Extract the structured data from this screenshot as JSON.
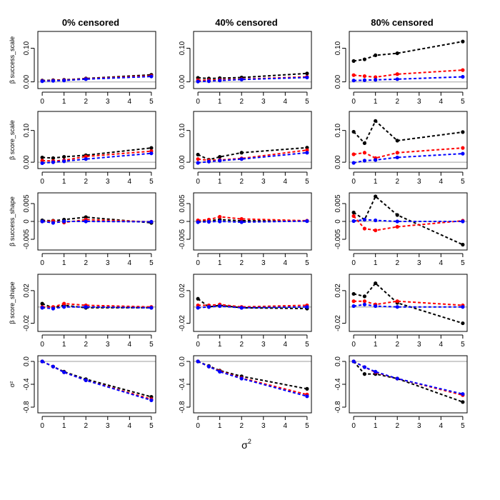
{
  "figure": {
    "xlabel_base": "σ",
    "xlabel_sup": "2"
  },
  "column_titles": [
    "0% censored",
    "40% censored",
    "80% censored"
  ],
  "colors": {
    "black": "#000000",
    "red": "#ff0000",
    "blue": "#0000ff",
    "reference": "#bebebe"
  },
  "rows": [
    {
      "label": "β success_scale",
      "ylim": [
        -0.02,
        0.15
      ],
      "yticks": [
        0.0,
        0.1
      ],
      "ytick_labels": [
        "0.00",
        "0.10"
      ]
    },
    {
      "label": "β score_scale",
      "ylim": [
        -0.02,
        0.16
      ],
      "yticks": [
        0.0,
        0.1
      ],
      "ytick_labels": [
        "0.00",
        "0.10"
      ]
    },
    {
      "label": "β success_shape",
      "ylim": [
        -0.008,
        0.008
      ],
      "yticks": [
        -0.005,
        0,
        0.005
      ],
      "ytick_labels": [
        "-0.005",
        "0",
        "0.005"
      ]
    },
    {
      "label": "β score_shape",
      "ylim": [
        -0.03,
        0.04
      ],
      "yticks": [
        -0.02,
        0.02
      ],
      "ytick_labels": [
        "-0.02",
        "0.02"
      ]
    },
    {
      "label": "σ²",
      "ylim": [
        -0.9,
        0.1
      ],
      "yticks": [
        0.0,
        -0.4,
        -0.8
      ],
      "ytick_labels": [
        "0.0",
        "-0.4",
        "-0.8"
      ]
    }
  ],
  "chart_data": [
    {
      "type": "line",
      "row": 0,
      "col": 0,
      "title": "0% censored",
      "ylabel": "β success_scale",
      "x": [
        0,
        0.5,
        1,
        2,
        5
      ],
      "xlim": [
        -0.2,
        5.2
      ],
      "ylim": [
        -0.02,
        0.15
      ],
      "reference_line": 0,
      "series": [
        {
          "name": "black",
          "values": [
            0.004,
            0.005,
            0.006,
            0.01,
            0.021
          ]
        },
        {
          "name": "red",
          "values": [
            0.003,
            0.004,
            0.005,
            0.009,
            0.018
          ]
        },
        {
          "name": "blue",
          "values": [
            0.002,
            0.003,
            0.004,
            0.008,
            0.016
          ]
        }
      ]
    },
    {
      "type": "line",
      "row": 0,
      "col": 1,
      "title": "40% censored",
      "ylabel": "β success_scale",
      "x": [
        0,
        0.5,
        1,
        2,
        5
      ],
      "xlim": [
        -0.2,
        5.2
      ],
      "ylim": [
        -0.02,
        0.15
      ],
      "reference_line": 0,
      "series": [
        {
          "name": "black",
          "values": [
            0.012,
            0.01,
            0.011,
            0.013,
            0.025
          ]
        },
        {
          "name": "red",
          "values": [
            0.005,
            0.005,
            0.006,
            0.008,
            0.015
          ]
        },
        {
          "name": "blue",
          "values": [
            0.001,
            0.002,
            0.004,
            0.007,
            0.013
          ]
        }
      ]
    },
    {
      "type": "line",
      "row": 0,
      "col": 2,
      "title": "80% censored",
      "ylabel": "β success_scale",
      "x": [
        0,
        0.5,
        1,
        2,
        5
      ],
      "xlim": [
        -0.2,
        5.2
      ],
      "ylim": [
        -0.02,
        0.15
      ],
      "reference_line": 0,
      "series": [
        {
          "name": "black",
          "values": [
            0.062,
            0.067,
            0.079,
            0.085,
            0.12
          ]
        },
        {
          "name": "red",
          "values": [
            0.02,
            0.017,
            0.014,
            0.023,
            0.035
          ]
        },
        {
          "name": "blue",
          "values": [
            0.004,
            0.005,
            0.006,
            0.008,
            0.015
          ]
        }
      ]
    },
    {
      "type": "line",
      "row": 1,
      "col": 0,
      "title": "0% censored",
      "ylabel": "β score_scale",
      "x": [
        0,
        0.5,
        1,
        2,
        5
      ],
      "xlim": [
        -0.2,
        5.2
      ],
      "ylim": [
        -0.02,
        0.16
      ],
      "reference_line": 0,
      "series": [
        {
          "name": "black",
          "values": [
            0.015,
            0.013,
            0.017,
            0.022,
            0.045
          ]
        },
        {
          "name": "red",
          "values": [
            0.005,
            0.004,
            0.006,
            0.018,
            0.035
          ]
        },
        {
          "name": "blue",
          "values": [
            -0.003,
            0.0,
            0.003,
            0.01,
            0.028
          ]
        }
      ]
    },
    {
      "type": "line",
      "row": 1,
      "col": 1,
      "title": "40% censored",
      "ylabel": "β score_scale",
      "x": [
        0,
        0.5,
        1,
        2,
        5
      ],
      "xlim": [
        -0.2,
        5.2
      ],
      "ylim": [
        -0.02,
        0.16
      ],
      "reference_line": 0,
      "series": [
        {
          "name": "black",
          "values": [
            0.024,
            0.008,
            0.017,
            0.03,
            0.046
          ]
        },
        {
          "name": "red",
          "values": [
            0.01,
            0.006,
            0.007,
            0.012,
            0.038
          ]
        },
        {
          "name": "blue",
          "values": [
            -0.002,
            0.002,
            0.005,
            0.01,
            0.03
          ]
        }
      ]
    },
    {
      "type": "line",
      "row": 1,
      "col": 2,
      "title": "80% censored",
      "ylabel": "β score_scale",
      "x": [
        0,
        0.5,
        1,
        2,
        5
      ],
      "xlim": [
        -0.2,
        5.2
      ],
      "ylim": [
        -0.02,
        0.16
      ],
      "reference_line": 0,
      "series": [
        {
          "name": "black",
          "values": [
            0.096,
            0.06,
            0.13,
            0.068,
            0.095
          ]
        },
        {
          "name": "red",
          "values": [
            0.025,
            0.03,
            0.013,
            0.03,
            0.045
          ]
        },
        {
          "name": "blue",
          "values": [
            -0.002,
            0.005,
            0.007,
            0.015,
            0.027
          ]
        }
      ]
    },
    {
      "type": "line",
      "row": 2,
      "col": 0,
      "title": "0% censored",
      "ylabel": "β success_shape",
      "x": [
        0,
        0.5,
        1,
        2,
        5
      ],
      "xlim": [
        -0.2,
        5.2
      ],
      "ylim": [
        -0.008,
        0.008
      ],
      "reference_line": 0,
      "series": [
        {
          "name": "black",
          "values": [
            0.0003,
            0.0002,
            0.0005,
            0.0012,
            -0.0004
          ]
        },
        {
          "name": "red",
          "values": [
            0.0,
            0.0001,
            -0.0003,
            0.0005,
            -0.0001
          ]
        },
        {
          "name": "blue",
          "values": [
            0.0,
            -0.0004,
            0.0,
            0.0,
            -0.0001
          ]
        }
      ]
    },
    {
      "type": "line",
      "row": 2,
      "col": 1,
      "title": "40% censored",
      "ylabel": "β success_shape",
      "x": [
        0,
        0.5,
        1,
        2,
        5
      ],
      "xlim": [
        -0.2,
        5.2
      ],
      "ylim": [
        -0.008,
        0.008
      ],
      "reference_line": 0,
      "series": [
        {
          "name": "black",
          "values": [
            0.0,
            0.0002,
            0.0005,
            0.0002,
            0.0001
          ]
        },
        {
          "name": "red",
          "values": [
            0.0003,
            0.0005,
            0.0013,
            0.0007,
            0.0002
          ]
        },
        {
          "name": "blue",
          "values": [
            -0.0002,
            -0.0001,
            0.0,
            -0.0002,
            0.0001
          ]
        }
      ]
    },
    {
      "type": "line",
      "row": 2,
      "col": 2,
      "title": "80% censored",
      "ylabel": "β success_shape",
      "x": [
        0,
        0.5,
        1,
        2,
        5
      ],
      "xlim": [
        -0.2,
        5.2
      ],
      "ylim": [
        -0.008,
        0.008
      ],
      "reference_line": 0,
      "series": [
        {
          "name": "black",
          "values": [
            0.0025,
            0.0005,
            0.007,
            0.0018,
            -0.0065
          ]
        },
        {
          "name": "red",
          "values": [
            0.0015,
            -0.002,
            -0.0025,
            -0.0015,
            0.0002
          ]
        },
        {
          "name": "blue",
          "values": [
            0.0001,
            0.0005,
            0.0003,
            0.0,
            0.0
          ]
        }
      ]
    },
    {
      "type": "line",
      "row": 3,
      "col": 0,
      "title": "0% censored",
      "ylabel": "β score_shape",
      "x": [
        0,
        0.5,
        1,
        2,
        5
      ],
      "xlim": [
        -0.2,
        5.2
      ],
      "ylim": [
        -0.03,
        0.04
      ],
      "reference_line": 0,
      "series": [
        {
          "name": "black",
          "values": [
            0.004,
            -0.001,
            0.002,
            -0.001,
            -0.001
          ]
        },
        {
          "name": "red",
          "values": [
            0.0,
            0.0,
            0.004,
            0.002,
            0.0
          ]
        },
        {
          "name": "blue",
          "values": [
            -0.001,
            -0.002,
            0.0,
            0.0,
            -0.001
          ]
        }
      ]
    },
    {
      "type": "line",
      "row": 3,
      "col": 1,
      "title": "40% censored",
      "ylabel": "β score_shape",
      "x": [
        0,
        0.5,
        1,
        2,
        5
      ],
      "xlim": [
        -0.2,
        5.2
      ],
      "ylim": [
        -0.03,
        0.04
      ],
      "reference_line": 0,
      "series": [
        {
          "name": "black",
          "values": [
            0.01,
            0.0,
            0.002,
            -0.001,
            -0.002
          ]
        },
        {
          "name": "red",
          "values": [
            0.002,
            0.002,
            0.003,
            0.0,
            0.002
          ]
        },
        {
          "name": "blue",
          "values": [
            -0.001,
            0.0,
            0.001,
            -0.001,
            0.0
          ]
        }
      ]
    },
    {
      "type": "line",
      "row": 3,
      "col": 2,
      "title": "80% censored",
      "ylabel": "β score_shape",
      "x": [
        0,
        0.5,
        1,
        2,
        5
      ],
      "xlim": [
        -0.2,
        5.2
      ],
      "ylim": [
        -0.03,
        0.04
      ],
      "reference_line": 0,
      "series": [
        {
          "name": "black",
          "values": [
            0.016,
            0.013,
            0.029,
            0.005,
            -0.02
          ]
        },
        {
          "name": "red",
          "values": [
            0.007,
            0.007,
            0.003,
            0.007,
            0.002
          ]
        },
        {
          "name": "blue",
          "values": [
            0.001,
            0.003,
            0.001,
            0.0,
            0.0
          ]
        }
      ]
    },
    {
      "type": "line",
      "row": 4,
      "col": 0,
      "title": "0% censored",
      "ylabel": "σ²",
      "x": [
        0,
        0.5,
        1,
        2,
        5
      ],
      "xlim": [
        -0.2,
        5.2
      ],
      "ylim": [
        -0.9,
        0.1
      ],
      "reference_line": 0,
      "series": [
        {
          "name": "black",
          "values": [
            0.0,
            -0.09,
            -0.18,
            -0.31,
            -0.62
          ]
        },
        {
          "name": "red",
          "values": [
            0.0,
            -0.09,
            -0.19,
            -0.33,
            -0.66
          ]
        },
        {
          "name": "blue",
          "values": [
            0.0,
            -0.09,
            -0.19,
            -0.33,
            -0.68
          ]
        }
      ]
    },
    {
      "type": "line",
      "row": 4,
      "col": 1,
      "title": "40% censored",
      "ylabel": "σ²",
      "x": [
        0,
        0.5,
        1,
        2,
        5
      ],
      "xlim": [
        -0.2,
        5.2
      ],
      "ylim": [
        -0.9,
        0.1
      ],
      "reference_line": 0,
      "series": [
        {
          "name": "black",
          "values": [
            0.0,
            -0.08,
            -0.16,
            -0.26,
            -0.48
          ]
        },
        {
          "name": "red",
          "values": [
            0.0,
            -0.09,
            -0.17,
            -0.29,
            -0.58
          ]
        },
        {
          "name": "blue",
          "values": [
            0.0,
            -0.09,
            -0.18,
            -0.3,
            -0.61
          ]
        }
      ]
    },
    {
      "type": "line",
      "row": 4,
      "col": 2,
      "title": "80% censored",
      "ylabel": "σ²",
      "x": [
        0,
        0.5,
        1,
        2,
        5
      ],
      "xlim": [
        -0.2,
        5.2
      ],
      "ylim": [
        -0.9,
        0.1
      ],
      "reference_line": 0,
      "series": [
        {
          "name": "black",
          "values": [
            0.0,
            -0.22,
            -0.22,
            -0.3,
            -0.71
          ]
        },
        {
          "name": "red",
          "values": [
            0.0,
            -0.1,
            -0.19,
            -0.3,
            -0.59
          ]
        },
        {
          "name": "blue",
          "values": [
            0.0,
            -0.1,
            -0.18,
            -0.3,
            -0.57
          ]
        }
      ]
    }
  ]
}
